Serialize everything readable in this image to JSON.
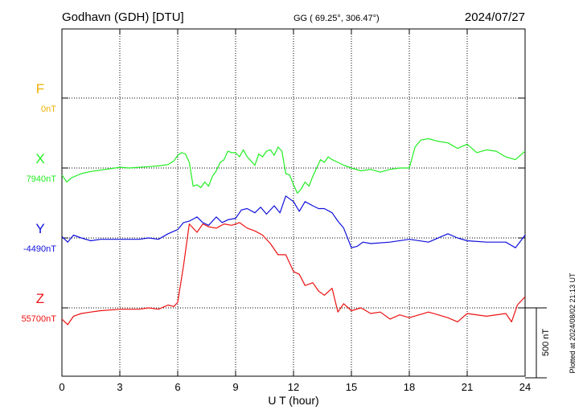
{
  "header": {
    "station": "Godhavn (GDH)  [DTU]",
    "coords": "GG ( 69.25°, 306.47°)",
    "date": "2024/07/27"
  },
  "footer": {
    "plotted": "Plotted at 2024/08/02 21:13 UT"
  },
  "chart_data": {
    "type": "line",
    "title": "Godhavn (GDH)  [DTU]",
    "xlabel": "U T (hour)",
    "xlim": [
      0,
      24
    ],
    "x_ticks": [
      "0",
      "3",
      "6",
      "9",
      "12",
      "15",
      "18",
      "21",
      "24"
    ],
    "grid": true,
    "scale_bar_label": "500 nT",
    "scale_bar_nT": 500,
    "series": [
      {
        "name": "F",
        "baseline_label": "0nT",
        "color": "#f0b000",
        "x": [],
        "y": []
      },
      {
        "name": "X",
        "baseline_label": "7940nT",
        "color": "#22ee22",
        "x": [
          0,
          0.25,
          0.5,
          1,
          1.5,
          2,
          2.5,
          3,
          3.5,
          4,
          4.5,
          5,
          5.5,
          5.8,
          6.0,
          6.2,
          6.4,
          6.6,
          6.8,
          7.0,
          7.2,
          7.4,
          7.6,
          7.8,
          8.0,
          8.2,
          8.4,
          8.6,
          8.8,
          9.0,
          9.2,
          9.4,
          9.6,
          9.8,
          10.0,
          10.2,
          10.4,
          10.6,
          10.8,
          11.0,
          11.2,
          11.4,
          11.6,
          11.8,
          12.0,
          12.2,
          12.4,
          12.6,
          12.8,
          13.0,
          13.2,
          13.4,
          13.6,
          13.8,
          14.0,
          14.3,
          14.6,
          15.0,
          15.5,
          16.0,
          16.5,
          17.0,
          17.5,
          18.0,
          18.3,
          18.6,
          19.0,
          19.5,
          20.0,
          20.5,
          21.0,
          21.5,
          22.0,
          22.5,
          23.0,
          23.5,
          24.0
        ],
        "y": [
          -50,
          -100,
          -70,
          -40,
          -25,
          -15,
          -5,
          5,
          0,
          5,
          10,
          15,
          25,
          50,
          90,
          110,
          100,
          40,
          -130,
          -120,
          -140,
          -100,
          -130,
          -60,
          -20,
          40,
          60,
          120,
          110,
          110,
          80,
          130,
          80,
          50,
          20,
          100,
          80,
          120,
          130,
          90,
          150,
          120,
          -40,
          -50,
          -120,
          -180,
          -150,
          -100,
          -130,
          -60,
          0,
          60,
          40,
          80,
          60,
          40,
          20,
          0,
          -20,
          -10,
          -30,
          -10,
          0,
          0,
          150,
          200,
          210,
          190,
          180,
          140,
          170,
          110,
          130,
          120,
          80,
          60,
          120
        ]
      },
      {
        "name": "Y",
        "baseline_label": "-4490nT",
        "color": "#1010dd",
        "x": [
          0,
          0.3,
          0.6,
          1,
          1.5,
          2,
          3,
          4,
          4.5,
          5,
          5.5,
          6.0,
          6.3,
          6.6,
          7.0,
          7.3,
          7.6,
          8.0,
          8.3,
          8.6,
          9.0,
          9.3,
          9.6,
          10.0,
          10.3,
          10.6,
          11.0,
          11.3,
          11.6,
          12.0,
          12.3,
          12.6,
          13.0,
          13.3,
          13.6,
          14.0,
          14.3,
          14.6,
          15.0,
          15.3,
          15.6,
          16.0,
          17.0,
          18.0,
          19.0,
          20.0,
          20.5,
          21.0,
          22.0,
          23.0,
          23.5,
          24.0
        ],
        "y": [
          10,
          -30,
          20,
          0,
          -20,
          -10,
          -10,
          -10,
          0,
          -10,
          30,
          60,
          110,
          120,
          150,
          110,
          90,
          150,
          110,
          130,
          140,
          200,
          210,
          180,
          220,
          170,
          230,
          180,
          300,
          260,
          190,
          260,
          230,
          210,
          210,
          180,
          120,
          70,
          -70,
          -60,
          -30,
          -40,
          -30,
          -10,
          -30,
          30,
          0,
          -20,
          -30,
          -30,
          -70,
          20
        ]
      },
      {
        "name": "Z",
        "baseline_label": "55700nT",
        "color": "#ee1111",
        "x": [
          0,
          0.3,
          0.6,
          1,
          1.5,
          2,
          3,
          4,
          4.5,
          5,
          5.5,
          5.8,
          6.0,
          6.3,
          6.6,
          7.0,
          7.3,
          7.6,
          8.0,
          8.4,
          8.8,
          9.2,
          9.6,
          10.0,
          10.4,
          10.8,
          11.2,
          11.6,
          12.0,
          12.3,
          12.6,
          13.0,
          13.3,
          13.6,
          14.0,
          14.3,
          14.6,
          15.0,
          15.5,
          16.0,
          16.5,
          17.0,
          17.5,
          18.0,
          19.0,
          20.0,
          20.5,
          21.0,
          22.0,
          23.0,
          23.3,
          23.6,
          24.0
        ],
        "y": [
          -80,
          -120,
          -60,
          -40,
          -30,
          -20,
          -10,
          -10,
          0,
          -10,
          20,
          10,
          40,
          300,
          600,
          540,
          600,
          580,
          570,
          600,
          590,
          610,
          570,
          550,
          520,
          460,
          380,
          380,
          260,
          240,
          160,
          180,
          120,
          90,
          140,
          -30,
          30,
          -20,
          0,
          -40,
          -30,
          -80,
          -50,
          -70,
          -30,
          -70,
          -100,
          -40,
          -60,
          -40,
          -100,
          20,
          80
        ]
      }
    ]
  }
}
